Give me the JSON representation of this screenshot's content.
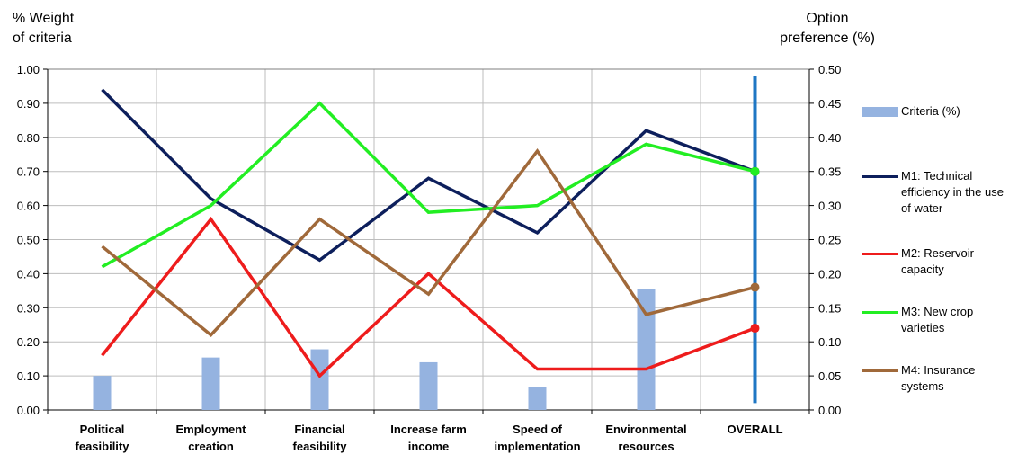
{
  "left_axis_title": "% Weight\nof criteria",
  "right_axis_title": "Option\npreference (%)",
  "chart_data": {
    "type": "line",
    "categories": [
      "Political\nfeasibility",
      "Employment\ncreation",
      "Financial\nfeasibility",
      "Increase farm\nincome",
      "Speed of\nimplementation",
      "Environmental\nresources",
      "OVERALL"
    ],
    "ylim_left": [
      0,
      1
    ],
    "ylim_right": [
      0,
      0.5
    ],
    "yticks_left": [
      "0.00",
      "0.10",
      "0.20",
      "0.30",
      "0.40",
      "0.50",
      "0.60",
      "0.70",
      "0.80",
      "0.90",
      "1.00"
    ],
    "yticks_right": [
      "0.00",
      "0.05",
      "0.10",
      "0.15",
      "0.20",
      "0.25",
      "0.30",
      "0.35",
      "0.40",
      "0.45",
      "0.50"
    ],
    "grid": true,
    "legend_position": "right",
    "overall_marker_color": "#1f77c4",
    "bars": {
      "name": "Criteria (%)",
      "axis": "right",
      "color": "#95b3e0",
      "values": [
        0.05,
        0.077,
        0.089,
        0.07,
        0.034,
        0.178
      ]
    },
    "series": [
      {
        "name": "M1: Technical\nefficiency in the use\nof water",
        "color": "#0d1f5c",
        "axis": "left",
        "values": [
          0.94,
          0.62,
          0.44,
          0.68,
          0.52,
          0.82,
          0.7
        ]
      },
      {
        "name": "M2: Reservoir\ncapacity",
        "color": "#ee1c1c",
        "axis": "left",
        "values": [
          0.16,
          0.56,
          0.1,
          0.4,
          0.12,
          0.12,
          0.24
        ]
      },
      {
        "name": "M3: New crop\nvarieties",
        "color": "#22ee22",
        "axis": "left",
        "values": [
          0.42,
          0.6,
          0.9,
          0.58,
          0.6,
          0.78,
          0.7
        ]
      },
      {
        "name": "M4: Insurance\nsystems",
        "color": "#a0693a",
        "axis": "left",
        "values": [
          0.48,
          0.22,
          0.56,
          0.34,
          0.76,
          0.28,
          0.36
        ]
      }
    ]
  }
}
